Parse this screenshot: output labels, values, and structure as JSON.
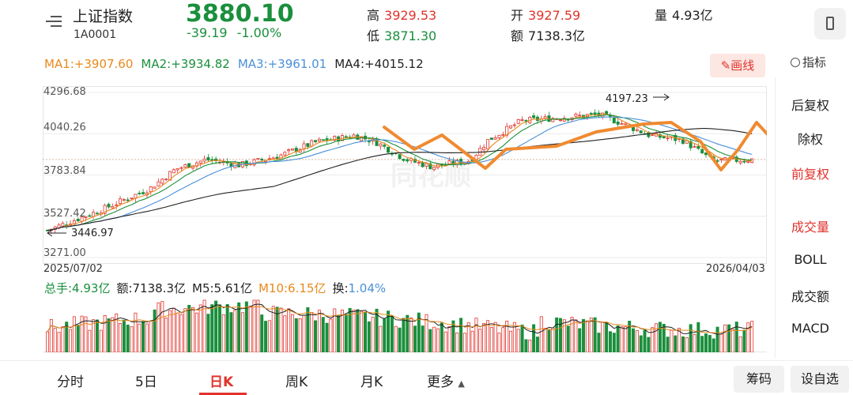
{
  "header": {
    "title": "上证指数",
    "code": "1A0001",
    "price": "3880.10",
    "change_abs": "-39.19",
    "change_pct": "-1.00%",
    "high_label": "高",
    "high_value": "3929.53",
    "low_label": "低",
    "low_value": "3871.30",
    "open_label": "开",
    "open_value": "3927.59",
    "amount_label": "额",
    "amount_value": "7138.3亿",
    "volume_label": "量",
    "volume_value": "4.93亿"
  },
  "ma": {
    "ma1": "MA1:+3907.60",
    "ma2": "MA2:+3934.82",
    "ma3": "MA3:+3961.01",
    "ma4": "MA4:+4015.12",
    "draw_label": "✎画线"
  },
  "side_panel": {
    "indicator_label": "指标",
    "items": [
      "后复权",
      "除权",
      "前复权",
      "成交量",
      "BOLL",
      "成交额",
      "MACD"
    ]
  },
  "chart": {
    "y_ticks": [
      "4296.68",
      "4040.26",
      "3783.84",
      "3527.42",
      "3271.00"
    ],
    "start_date": "2025/07/02",
    "end_date": "2026/04/03",
    "max_marker": "4197.23",
    "min_marker": "3446.97",
    "watermark": "同花顺"
  },
  "volume": {
    "total": "总手:4.93亿",
    "amount": "额:7138.3亿",
    "m5": "M5:5.61亿",
    "m10": "M10:6.15亿",
    "turnover_label": "换:",
    "turnover_value": "1.04%"
  },
  "tabs": {
    "items": [
      "分时",
      "5日",
      "日K",
      "周K",
      "月K",
      "更多"
    ],
    "active": "日K",
    "more_arrow": "▲",
    "chip_label": "筹码",
    "watchlist_label": "设自选"
  },
  "colors": {
    "up": "#e0332c",
    "down": "#1a8f3c",
    "ma1": "#e8891c",
    "ma2": "#1a8f3c",
    "ma3": "#4a90d9",
    "ma4": "#222222",
    "annotation": "#f08a30"
  },
  "chart_data": {
    "type": "candlestick",
    "y_range": [
      3271.0,
      4296.68
    ],
    "x_range": [
      "2025/07/02",
      "2026/04/03"
    ],
    "labeled_extremes": {
      "max": 4197.23,
      "min": 3446.97
    },
    "last_close": 3880.1
  }
}
